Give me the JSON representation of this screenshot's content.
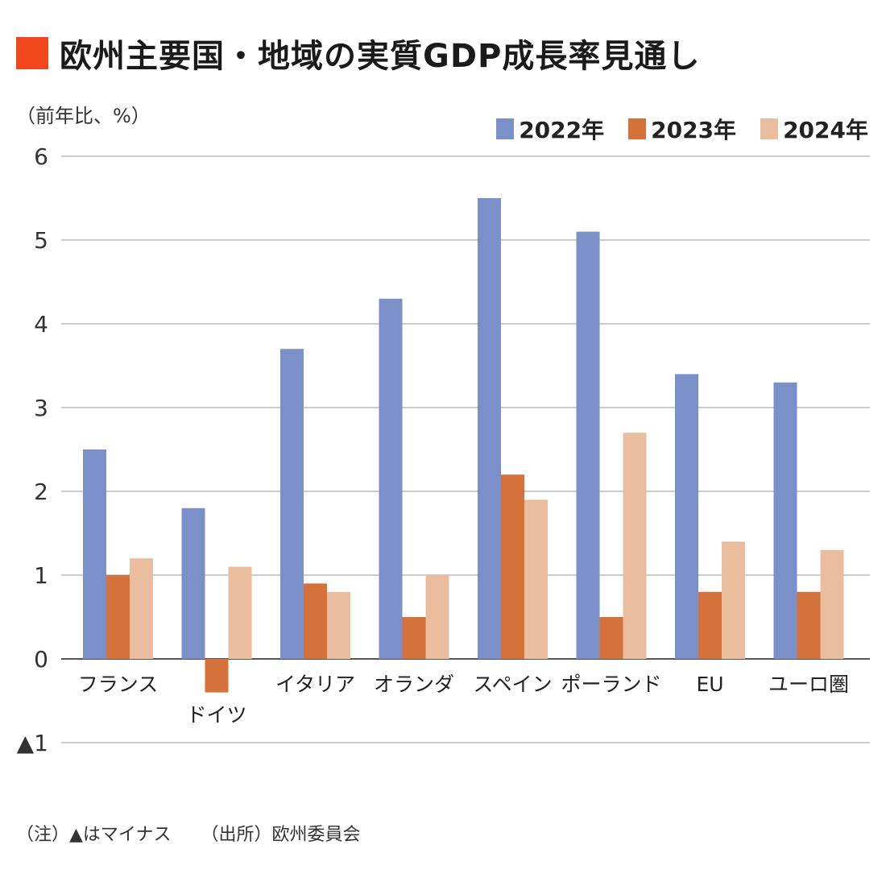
{
  "title": "欧州主要国・地域の実質GDP成長率見通し",
  "unit_label": "（前年比、%）",
  "colors": {
    "title_square": "#f2471c",
    "gridline": "#bbbbbb",
    "axis": "#555555"
  },
  "notes": {
    "note": "（注）▲はマイナス",
    "source": "（出所）欧州委員会"
  },
  "chart_data": {
    "type": "bar",
    "categories": [
      "フランス",
      "ドイツ",
      "イタリア",
      "オランダ",
      "スペイン",
      "ポーランド",
      "EU",
      "ユーロ圏"
    ],
    "series": [
      {
        "name": "2022年",
        "color": "#7b8fc9",
        "values": [
          2.5,
          1.8,
          3.7,
          4.3,
          5.5,
          5.1,
          3.4,
          3.3
        ]
      },
      {
        "name": "2023年",
        "color": "#d5713a",
        "values": [
          1.0,
          -0.4,
          0.9,
          0.5,
          2.2,
          0.5,
          0.8,
          0.8
        ]
      },
      {
        "name": "2024年",
        "color": "#ebbd9f",
        "values": [
          1.2,
          1.1,
          0.8,
          1.0,
          1.9,
          2.7,
          1.4,
          1.3
        ]
      }
    ],
    "ylim": [
      -1,
      6
    ],
    "yticks": [
      6,
      5,
      4,
      3,
      2,
      1,
      0,
      -1
    ],
    "ytick_labels": [
      "6",
      "5",
      "4",
      "3",
      "2",
      "1",
      "0",
      "▲1"
    ],
    "grid": true,
    "legend_position": "top-right"
  }
}
